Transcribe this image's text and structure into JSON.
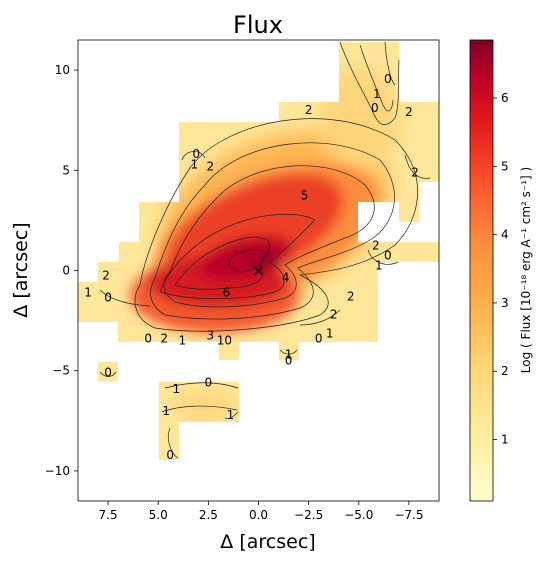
{
  "chart_data": {
    "type": "heatmap",
    "title": "Flux",
    "xlabel": "Δ [arcsec]",
    "ylabel": "Δ [arcsec]",
    "xlim": [
      9.0,
      -9.0
    ],
    "ylim": [
      -11.5,
      11.5
    ],
    "xticks": [
      7.5,
      5.0,
      2.5,
      0.0,
      -2.5,
      -5.0,
      -7.5
    ],
    "xtick_labels": [
      "7.5",
      "5.0",
      "2.5",
      "0.0",
      "−2.5",
      "−5.0",
      "−7.5"
    ],
    "yticks": [
      10,
      5,
      0,
      -5,
      -10
    ],
    "ytick_labels": [
      "10",
      "5",
      "0",
      "−5",
      "−10"
    ],
    "colorbar": {
      "label": "Log ( Flux [10⁻¹⁸ erg A⁻¹ cm² s⁻¹] )",
      "range": [
        0.1,
        6.85
      ],
      "ticks": [
        1,
        2,
        3,
        4,
        5,
        6
      ],
      "tick_labels": [
        "1",
        "2",
        "3",
        "4",
        "5",
        "6"
      ],
      "colormap": "YlOrRd"
    },
    "peak_marker": {
      "x": 0.0,
      "y": 0.0,
      "symbol": "×"
    },
    "contour_labels": [
      {
        "text": "0",
        "x": -6.45,
        "y": 9.55
      },
      {
        "text": "1",
        "x": -5.9,
        "y": 8.8
      },
      {
        "text": "0",
        "x": -5.8,
        "y": 8.1
      },
      {
        "text": "2",
        "x": -2.5,
        "y": 8.0
      },
      {
        "text": "2",
        "x": -7.5,
        "y": 7.9
      },
      {
        "text": "0",
        "x": 3.1,
        "y": 5.8
      },
      {
        "text": "1",
        "x": 3.2,
        "y": 5.3
      },
      {
        "text": "2",
        "x": 2.4,
        "y": 5.2
      },
      {
        "text": "2",
        "x": -7.8,
        "y": 4.9
      },
      {
        "text": "5",
        "x": -2.3,
        "y": 3.75
      },
      {
        "text": "2",
        "x": -5.85,
        "y": 1.25
      },
      {
        "text": "0",
        "x": -6.45,
        "y": 0.75
      },
      {
        "text": "1",
        "x": -6.0,
        "y": 0.25
      },
      {
        "text": "2",
        "x": 7.6,
        "y": -0.25
      },
      {
        "text": "4",
        "x": -1.35,
        "y": -0.35
      },
      {
        "text": "1",
        "x": 8.5,
        "y": -1.1
      },
      {
        "text": "6",
        "x": 1.6,
        "y": -1.1
      },
      {
        "text": "0",
        "x": 7.5,
        "y": -1.35
      },
      {
        "text": "2",
        "x": -4.6,
        "y": -1.3
      },
      {
        "text": "2",
        "x": -3.75,
        "y": -2.2
      },
      {
        "text": "1",
        "x": -3.55,
        "y": -3.15
      },
      {
        "text": "0",
        "x": 5.5,
        "y": -3.4
      },
      {
        "text": "2",
        "x": 4.7,
        "y": -3.4
      },
      {
        "text": "1",
        "x": 3.8,
        "y": -3.5
      },
      {
        "text": "3",
        "x": 2.4,
        "y": -3.25
      },
      {
        "text": "10",
        "x": 1.7,
        "y": -3.5
      },
      {
        "text": "0",
        "x": -3.0,
        "y": -3.4
      },
      {
        "text": "1",
        "x": -1.5,
        "y": -4.2
      },
      {
        "text": "0",
        "x": -1.5,
        "y": -4.5
      },
      {
        "text": "0",
        "x": 7.5,
        "y": -5.1
      },
      {
        "text": "0",
        "x": 2.5,
        "y": -5.6
      },
      {
        "text": "1",
        "x": 4.1,
        "y": -5.9
      },
      {
        "text": "1",
        "x": 4.6,
        "y": -7.0
      },
      {
        "text": "1",
        "x": 1.4,
        "y": -7.2
      },
      {
        "text": "0",
        "x": 4.4,
        "y": -9.2
      }
    ]
  }
}
